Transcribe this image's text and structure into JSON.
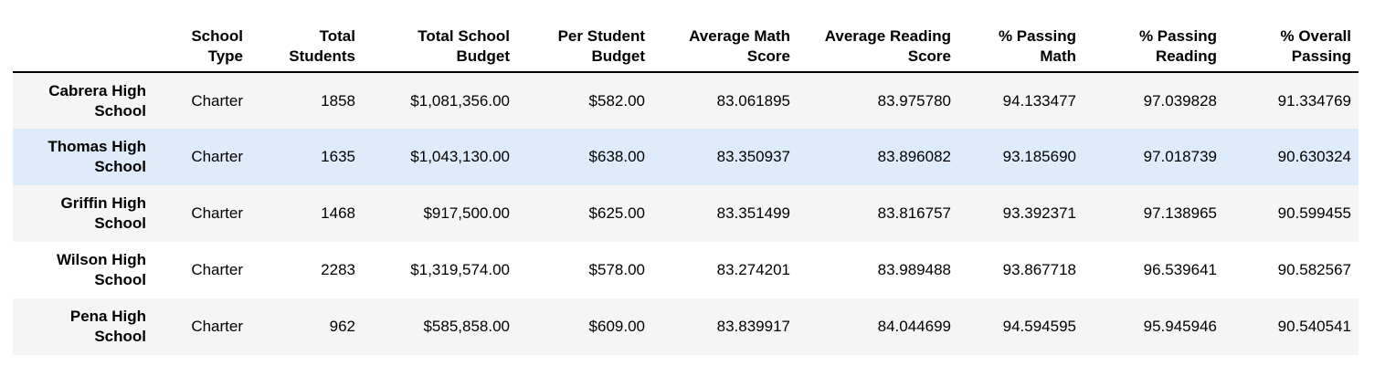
{
  "table": {
    "columns": [
      "",
      "School Type",
      "Total Students",
      "Total School Budget",
      "Per Student Budget",
      "Average Math Score",
      "Average Reading Score",
      "% Passing Math",
      "% Passing Reading",
      "% Overall Passing"
    ],
    "rows": [
      {
        "name": "Cabrera High School",
        "cells": [
          "Charter",
          "1858",
          "$1,081,356.00",
          "$582.00",
          "83.061895",
          "83.975780",
          "94.133477",
          "97.039828",
          "91.334769"
        ]
      },
      {
        "name": "Thomas High School",
        "cells": [
          "Charter",
          "1635",
          "$1,043,130.00",
          "$638.00",
          "83.350937",
          "83.896082",
          "93.185690",
          "97.018739",
          "90.630324"
        ]
      },
      {
        "name": "Griffin High School",
        "cells": [
          "Charter",
          "1468",
          "$917,500.00",
          "$625.00",
          "83.351499",
          "83.816757",
          "93.392371",
          "97.138965",
          "90.599455"
        ]
      },
      {
        "name": "Wilson High School",
        "cells": [
          "Charter",
          "2283",
          "$1,319,574.00",
          "$578.00",
          "83.274201",
          "83.989488",
          "93.867718",
          "96.539641",
          "90.582567"
        ]
      },
      {
        "name": "Pena High School",
        "cells": [
          "Charter",
          "962",
          "$585,858.00",
          "$609.00",
          "83.839917",
          "84.044699",
          "94.594595",
          "95.945946",
          "90.540541"
        ]
      }
    ],
    "highlighted_row": 1
  }
}
